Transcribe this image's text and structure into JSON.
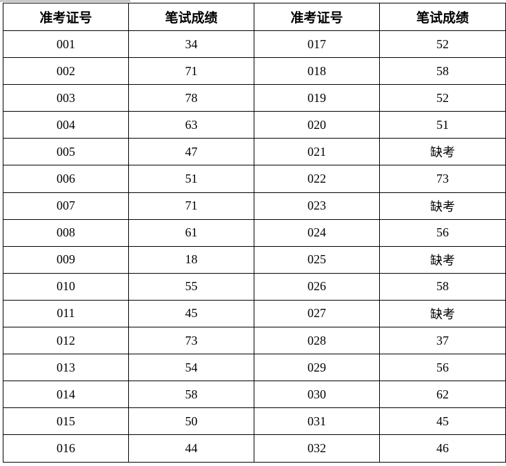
{
  "headers": [
    "准考证号",
    "笔试成绩",
    "准考证号",
    "笔试成绩"
  ],
  "rows": [
    [
      "001",
      "34",
      "017",
      "52"
    ],
    [
      "002",
      "71",
      "018",
      "58"
    ],
    [
      "003",
      "78",
      "019",
      "52"
    ],
    [
      "004",
      "63",
      "020",
      "51"
    ],
    [
      "005",
      "47",
      "021",
      "缺考"
    ],
    [
      "006",
      "51",
      "022",
      "73"
    ],
    [
      "007",
      "71",
      "023",
      "缺考"
    ],
    [
      "008",
      "61",
      "024",
      "56"
    ],
    [
      "009",
      "18",
      "025",
      "缺考"
    ],
    [
      "010",
      "55",
      "026",
      "58"
    ],
    [
      "011",
      "45",
      "027",
      "缺考"
    ],
    [
      "012",
      "73",
      "028",
      "37"
    ],
    [
      "013",
      "54",
      "029",
      "56"
    ],
    [
      "014",
      "58",
      "030",
      "62"
    ],
    [
      "015",
      "50",
      "031",
      "45"
    ],
    [
      "016",
      "44",
      "032",
      "46"
    ]
  ]
}
